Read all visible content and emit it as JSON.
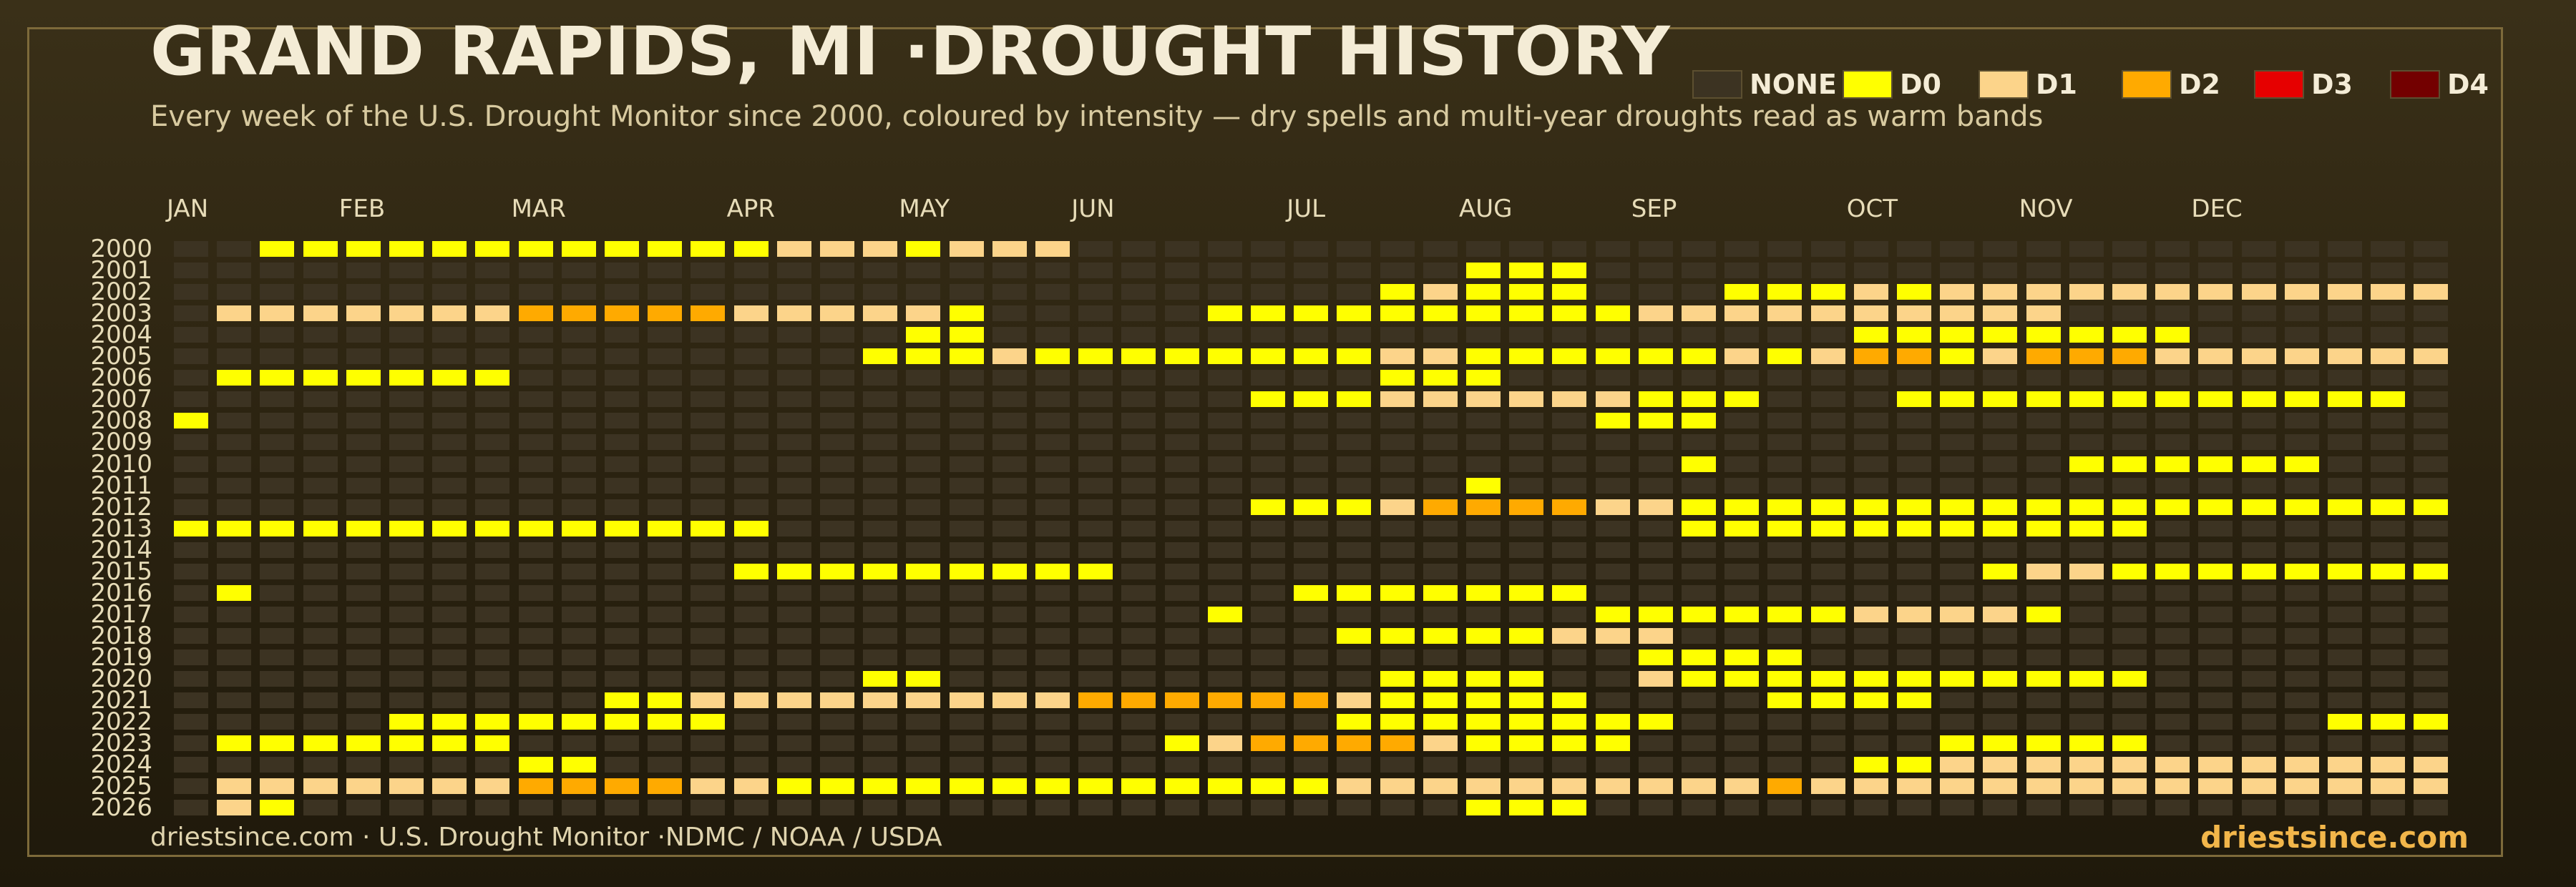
{
  "title": "GRAND RAPIDS, MI ·DROUGHT HISTORY",
  "subtitle": "Every week of the U.S. Drought Monitor since 2000, coloured by intensity — dry spells and multi-year droughts read as warm bands",
  "legend": [
    {
      "key": "none",
      "label": "NONE",
      "color": "#3c3322"
    },
    {
      "key": "d0",
      "label": "D0",
      "color": "#ffff00"
    },
    {
      "key": "d1",
      "label": "D1",
      "color": "#fcd48a"
    },
    {
      "key": "d2",
      "label": "D2",
      "color": "#ffaa00"
    },
    {
      "key": "d3",
      "label": "D3",
      "color": "#e60000"
    },
    {
      "key": "d4",
      "label": "D4",
      "color": "#730000"
    }
  ],
  "footer": {
    "source": "driestsince.com  · U.S. Drought Monitor ·NDMC / NOAA / USDA",
    "brand": "driestsince.com"
  },
  "chart_data": {
    "type": "heatmap",
    "x_labels": [
      "JAN",
      "FEB",
      "MAR",
      "APR",
      "MAY",
      "JUN",
      "JUL",
      "AUG",
      "SEP",
      "OCT",
      "NOV",
      "DEC"
    ],
    "month_start_week": [
      0,
      4,
      8,
      13,
      17,
      21,
      26,
      30,
      34,
      39,
      43,
      47
    ],
    "weeks_per_year": 53,
    "years": [
      "2000",
      "2001",
      "2002",
      "2003",
      "2004",
      "2005",
      "2006",
      "2007",
      "2008",
      "2009",
      "2010",
      "2011",
      "2012",
      "2013",
      "2014",
      "2015",
      "2016",
      "2017",
      "2018",
      "2019",
      "2020",
      "2021",
      "2022",
      "2023",
      "2024",
      "2025",
      "2026"
    ],
    "value_scale": "0 = NONE, 1 = D0, 2 = D1, 3 = D2, 4 = D3, 5 = D4",
    "runs": {
      "2000": [
        [
          2,
          14,
          1
        ],
        [
          14,
          17,
          2
        ],
        [
          17,
          18,
          1
        ],
        [
          18,
          21,
          2
        ]
      ],
      "2001": [
        [
          30,
          33,
          1
        ]
      ],
      "2002": [
        [
          28,
          29,
          1
        ],
        [
          29,
          30,
          2
        ],
        [
          30,
          33,
          1
        ],
        [
          36,
          39,
          1
        ],
        [
          39,
          40,
          2
        ],
        [
          40,
          41,
          1
        ],
        [
          41,
          53,
          2
        ]
      ],
      "2003": [
        [
          1,
          8,
          2
        ],
        [
          8,
          13,
          3
        ],
        [
          13,
          18,
          2
        ],
        [
          18,
          19,
          1
        ],
        [
          24,
          34,
          1
        ],
        [
          34,
          44,
          2
        ]
      ],
      "2004": [
        [
          17,
          19,
          1
        ],
        [
          39,
          47,
          1
        ]
      ],
      "2005": [
        [
          16,
          19,
          1
        ],
        [
          19,
          20,
          2
        ],
        [
          20,
          28,
          1
        ],
        [
          28,
          30,
          2
        ],
        [
          30,
          36,
          1
        ],
        [
          36,
          37,
          2
        ],
        [
          37,
          38,
          1
        ],
        [
          38,
          39,
          2
        ],
        [
          39,
          41,
          3
        ],
        [
          41,
          42,
          1
        ],
        [
          42,
          43,
          2
        ],
        [
          43,
          46,
          3
        ],
        [
          46,
          47,
          2
        ],
        [
          47,
          53,
          2
        ]
      ],
      "2006": [
        [
          1,
          8,
          1
        ],
        [
          28,
          30,
          1
        ],
        [
          30,
          31,
          1
        ]
      ],
      "2007": [
        [
          25,
          28,
          1
        ],
        [
          28,
          33,
          2
        ],
        [
          33,
          34,
          2
        ],
        [
          34,
          37,
          1
        ],
        [
          40,
          52,
          1
        ]
      ],
      "2008": [
        [
          0,
          1,
          1
        ],
        [
          33,
          36,
          1
        ]
      ],
      "2009": [],
      "2010": [
        [
          35,
          36,
          1
        ],
        [
          44,
          50,
          1
        ]
      ],
      "2011": [
        [
          30,
          31,
          1
        ]
      ],
      "2012": [
        [
          25,
          28,
          1
        ],
        [
          28,
          29,
          2
        ],
        [
          29,
          33,
          3
        ],
        [
          33,
          35,
          2
        ],
        [
          35,
          53,
          1
        ]
      ],
      "2013": [
        [
          0,
          14,
          1
        ],
        [
          35,
          46,
          1
        ]
      ],
      "2014": [],
      "2015": [
        [
          13,
          22,
          1
        ],
        [
          42,
          43,
          1
        ],
        [
          43,
          45,
          2
        ],
        [
          45,
          53,
          1
        ]
      ],
      "2016": [
        [
          1,
          2,
          1
        ],
        [
          26,
          33,
          1
        ]
      ],
      "2017": [
        [
          24,
          25,
          1
        ],
        [
          33,
          39,
          1
        ],
        [
          39,
          43,
          2
        ],
        [
          43,
          44,
          1
        ]
      ],
      "2018": [
        [
          27,
          32,
          1
        ],
        [
          32,
          35,
          2
        ]
      ],
      "2019": [
        [
          34,
          38,
          1
        ]
      ],
      "2020": [
        [
          16,
          18,
          1
        ],
        [
          28,
          32,
          1
        ],
        [
          34,
          35,
          2
        ],
        [
          35,
          46,
          1
        ]
      ],
      "2021": [
        [
          10,
          12,
          1
        ],
        [
          12,
          20,
          2
        ],
        [
          20,
          21,
          2
        ],
        [
          21,
          27,
          3
        ],
        [
          27,
          28,
          2
        ],
        [
          28,
          33,
          1
        ],
        [
          37,
          41,
          1
        ]
      ],
      "2022": [
        [
          5,
          13,
          1
        ],
        [
          27,
          35,
          1
        ],
        [
          50,
          53,
          1
        ]
      ],
      "2023": [
        [
          1,
          8,
          1
        ],
        [
          23,
          24,
          1
        ],
        [
          24,
          25,
          2
        ],
        [
          25,
          29,
          3
        ],
        [
          29,
          30,
          2
        ],
        [
          30,
          34,
          1
        ],
        [
          41,
          46,
          1
        ]
      ],
      "2024": [
        [
          8,
          10,
          1
        ],
        [
          39,
          41,
          1
        ],
        [
          41,
          53,
          2
        ]
      ],
      "2025": [
        [
          1,
          8,
          2
        ],
        [
          8,
          12,
          3
        ],
        [
          12,
          14,
          2
        ],
        [
          14,
          27,
          1
        ],
        [
          27,
          37,
          2
        ],
        [
          37,
          38,
          3
        ],
        [
          38,
          53,
          2
        ]
      ],
      "2026": [
        [
          1,
          2,
          2
        ],
        [
          2,
          3,
          1
        ],
        [
          30,
          33,
          1
        ]
      ]
    }
  }
}
